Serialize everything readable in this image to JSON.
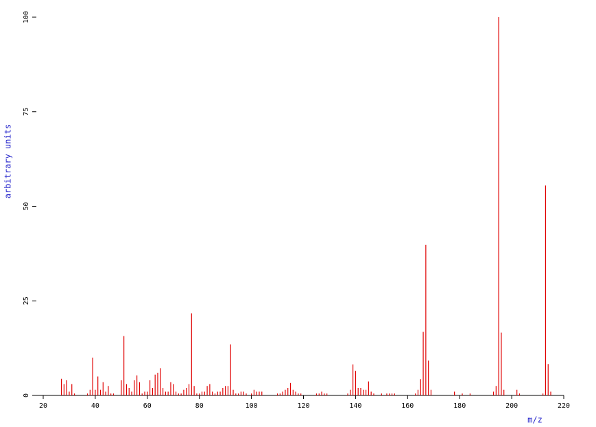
{
  "chart_data": {
    "type": "stick",
    "xlabel": "m/z",
    "ylabel": "arbitrary units",
    "color": "#e00000",
    "x": [
      27,
      28,
      29,
      30,
      31,
      32,
      37,
      38,
      39,
      40,
      41,
      42,
      43,
      44,
      45,
      46,
      47,
      50,
      51,
      52,
      53,
      54,
      55,
      56,
      57,
      58,
      59,
      60,
      61,
      62,
      63,
      64,
      65,
      66,
      67,
      68,
      69,
      70,
      71,
      72,
      73,
      74,
      75,
      76,
      77,
      78,
      79,
      80,
      81,
      82,
      83,
      84,
      85,
      86,
      87,
      88,
      89,
      90,
      91,
      92,
      93,
      94,
      95,
      96,
      97,
      98,
      100,
      101,
      102,
      103,
      104,
      110,
      111,
      112,
      113,
      114,
      115,
      116,
      117,
      118,
      119,
      125,
      126,
      127,
      128,
      129,
      137,
      138,
      139,
      140,
      141,
      142,
      143,
      144,
      145,
      146,
      147,
      150,
      152,
      153,
      154,
      155,
      163,
      164,
      165,
      166,
      167,
      168,
      169,
      178,
      181,
      184,
      193,
      194,
      195,
      196,
      197,
      202,
      203,
      212,
      213,
      214,
      215
    ],
    "values": [
      4.4,
      3,
      4,
      1,
      3,
      0.5,
      0.5,
      1.5,
      10,
      1.5,
      5,
      1.5,
      3.5,
      1,
      2.5,
      0.5,
      0.5,
      4,
      15.7,
      3,
      2,
      1,
      4,
      5.3,
      3.5,
      0.5,
      1,
      1,
      4,
      2,
      5.5,
      6,
      7.2,
      2,
      1,
      1,
      3.5,
      3,
      1,
      0.5,
      0.5,
      1.5,
      2,
      3,
      21.7,
      2.5,
      0.5,
      0.5,
      1,
      1,
      2.5,
      3,
      1,
      0.5,
      1,
      1,
      2,
      2.5,
      2.5,
      13.5,
      1.5,
      0.5,
      0.5,
      1,
      1,
      0.5,
      0.5,
      1.5,
      1,
      1,
      1,
      0.5,
      0.5,
      1,
      1.5,
      2,
      3.3,
      1.5,
      1,
      0.5,
      0.5,
      0.5,
      0.5,
      1,
      0.5,
      0.5,
      0.5,
      1.5,
      8.2,
      6.5,
      2,
      2,
      1.5,
      1.5,
      3.7,
      1,
      0.5,
      0.5,
      0.5,
      0.5,
      0.5,
      0.5,
      0.5,
      1.5,
      4.3,
      16.8,
      39.8,
      9.2,
      1.5,
      1,
      0.5,
      0.5,
      1,
      2.5,
      100,
      16.6,
      1.5,
      1.5,
      0.5,
      0.5,
      55.5,
      8.3,
      1
    ],
    "xlim": [
      20,
      220
    ],
    "xticks": [
      20,
      40,
      60,
      80,
      100,
      120,
      140,
      160,
      180,
      200,
      220
    ],
    "ylim": [
      0,
      100
    ],
    "yticks": [
      0,
      25,
      50,
      75,
      100
    ]
  }
}
